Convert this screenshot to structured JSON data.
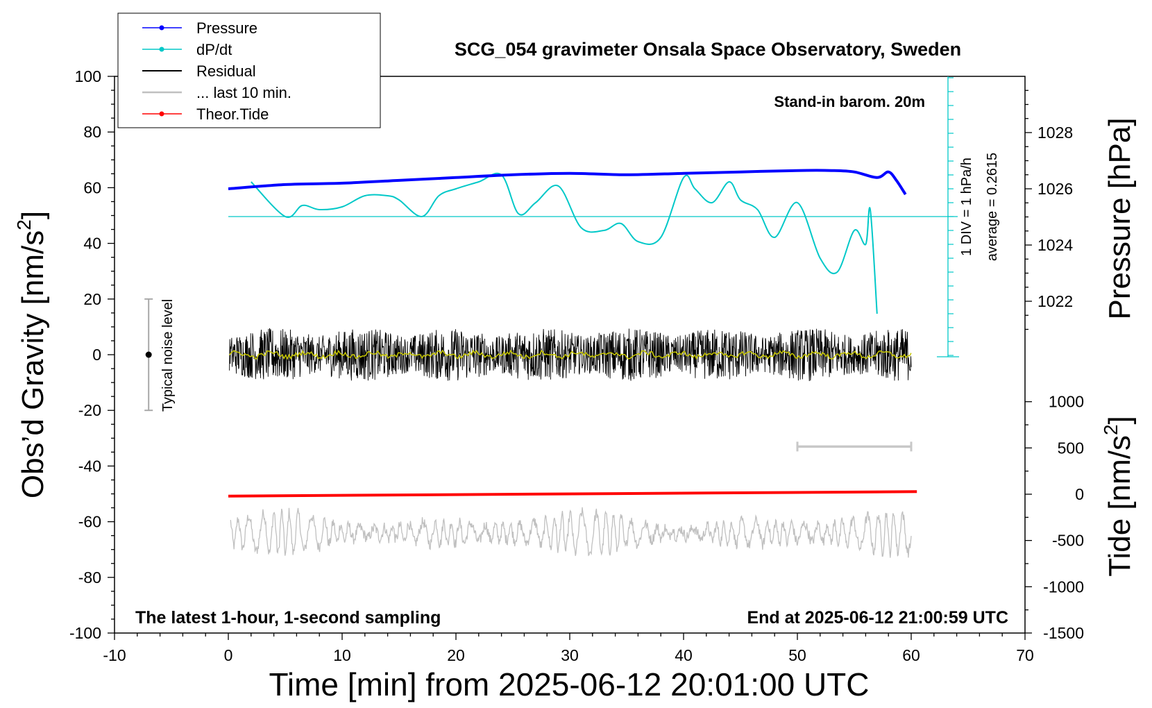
{
  "chart_data": {
    "type": "line",
    "title": "SCG_054 gravimeter Onsala Space Observatory, Sweden",
    "xlabel": "Time [min] from 2025-06-12 20:01:00 UTC",
    "ylabel_left": "Obs’d Gravity [nm/s²]",
    "ylabel_left_main": "Obs’d Gravity [nm/s",
    "ylabel_left_sup": "2",
    "ylabel_left_end": "]",
    "ylabel_right_pressure": "Pressure [hPa]",
    "ylabel_right_tide": "Tide [nm/s²]",
    "ylabel_right_tide_main": "Tide [nm/s",
    "ylabel_right_tide_sup": "2",
    "ylabel_right_tide_end": "]",
    "xlim": [
      -10,
      70
    ],
    "ylim_left": [
      -100,
      100
    ],
    "pressure_range": [
      1020,
      1030
    ],
    "tide_range": [
      -1500,
      1500
    ],
    "x_ticks": [
      "-10",
      "0",
      "10",
      "20",
      "30",
      "40",
      "50",
      "60",
      "70"
    ],
    "y_ticks_left": [
      "100",
      "80",
      "60",
      "40",
      "20",
      "0",
      "-20",
      "-40",
      "-60",
      "-80",
      "-100"
    ],
    "y_ticks_pressure": [
      "1028",
      "1026",
      "1024",
      "1022"
    ],
    "y_ticks_tide": [
      "1000",
      "500",
      "0",
      "-500",
      "-1000",
      "-1500"
    ],
    "annotations": {
      "barometer": "Stand-in barom. 20m",
      "div": "1 DIV = 1 hPa/h",
      "average": "average = 0.2615",
      "noise": "Typical noise level",
      "bottom_left": "The latest 1-hour, 1-second sampling",
      "bottom_right": "End at 2025-06-12 21:00:59 UTC"
    },
    "legend_position": "top-left",
    "legend": [
      "Pressure",
      "dP/dt",
      "Residual",
      "... last 10 min.",
      "Theor.Tide"
    ],
    "colors": {
      "pressure": "#0000ff",
      "dpdt": "#00c8c8",
      "residual": "#000000",
      "last10": "#c8c8c8",
      "tide": "#ff0000",
      "smooth": "#c8c800",
      "lower": "#c0c0c0"
    },
    "series": [
      {
        "name": "Pressure",
        "unit": "hPa",
        "x": [
          0,
          5,
          10,
          15,
          20,
          25,
          30,
          35,
          40,
          45,
          50,
          53,
          55,
          57,
          58,
          58.7,
          59.5
        ],
        "values": [
          1026.0,
          1026.15,
          1026.2,
          1026.3,
          1026.4,
          1026.5,
          1026.55,
          1026.5,
          1026.55,
          1026.6,
          1026.65,
          1026.65,
          1026.6,
          1026.4,
          1026.6,
          1026.3,
          1025.8
        ]
      },
      {
        "name": "dP/dt",
        "unit": "hPa/h",
        "x": [
          2,
          5,
          6.5,
          8,
          10,
          12,
          14,
          15,
          17,
          18.5,
          20,
          22,
          24,
          25.5,
          27,
          29,
          31,
          33,
          34.5,
          36,
          38,
          40,
          41,
          42.5,
          44,
          45,
          46.5,
          48,
          50,
          52,
          53.5,
          55,
          56,
          56.4,
          57
        ],
        "values": [
          2.5,
          0.0,
          0.8,
          0.5,
          0.7,
          1.5,
          1.5,
          1.2,
          0.0,
          1.5,
          2.0,
          2.5,
          3.0,
          0.2,
          1.0,
          2.2,
          -0.8,
          -1.0,
          -0.5,
          -1.8,
          -1.5,
          2.8,
          2.0,
          1.0,
          2.5,
          1.2,
          0.5,
          -1.5,
          1.0,
          -3.0,
          -4.0,
          -1.0,
          -2.0,
          0.5,
          -7.0
        ]
      },
      {
        "name": "Residual",
        "unit": "nm/s²",
        "x_range": [
          0,
          60
        ],
        "amplitude": 8
      },
      {
        "name": "... last 10 min.",
        "x": [
          50,
          60
        ],
        "y": [
          -33,
          -33
        ]
      },
      {
        "name": "Theor.Tide",
        "unit": "nm/s²",
        "x": [
          0,
          60.5
        ],
        "y": [
          -50.8,
          -49.2
        ]
      }
    ]
  }
}
